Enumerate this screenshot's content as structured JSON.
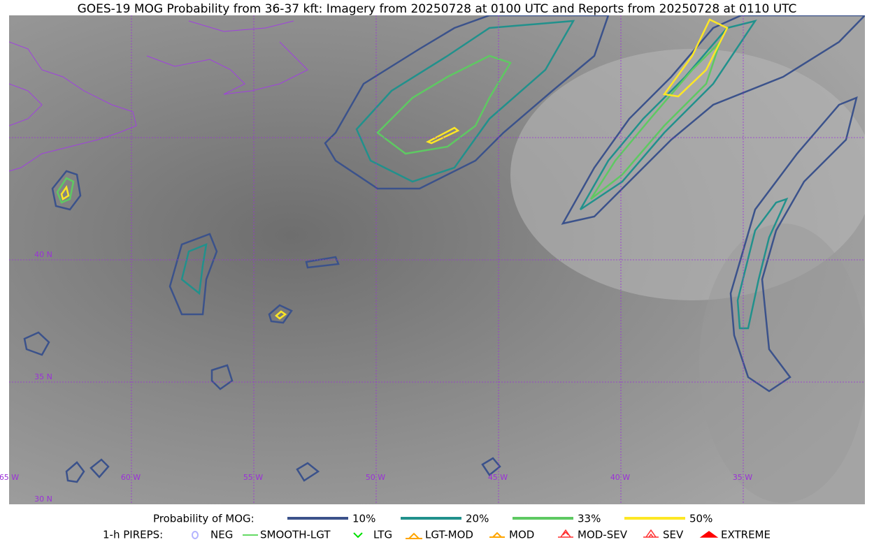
{
  "title": "GOES-19 MOG Probability from 36-37 kft: Imagery from 20250728 at 0100 UTC and Reports from 20250728 at 0110 UTC",
  "map": {
    "lon_labels": [
      "65 W",
      "60 W",
      "55 W",
      "50 W",
      "45 W",
      "40 W",
      "35 W"
    ],
    "lat_labels": [
      "40 N",
      "35 N",
      "30 N"
    ]
  },
  "legend": {
    "probability": {
      "label": "Probability of MOG:",
      "items": [
        {
          "label": "10%",
          "color": "#3b528b"
        },
        {
          "label": "20%",
          "color": "#21918c"
        },
        {
          "label": "33%",
          "color": "#5ec962"
        },
        {
          "label": "50%",
          "color": "#fde725"
        }
      ]
    },
    "pireps": {
      "label": "1-h PIREPS:",
      "items": [
        {
          "label": "NEG",
          "color": "#b4b4ff"
        },
        {
          "label": "SMOOTH-LGT",
          "color": "#32cd32"
        },
        {
          "label": "LTG",
          "color": "#00e000"
        },
        {
          "label": "LGT-MOD",
          "color": "#ffa500"
        },
        {
          "label": "MOD",
          "color": "#ffa500"
        },
        {
          "label": "MOD-SEV",
          "color": "#ff3030"
        },
        {
          "label": "SEV",
          "color": "#ff3030"
        },
        {
          "label": "EXTREME",
          "color": "#ff0000"
        }
      ]
    }
  }
}
